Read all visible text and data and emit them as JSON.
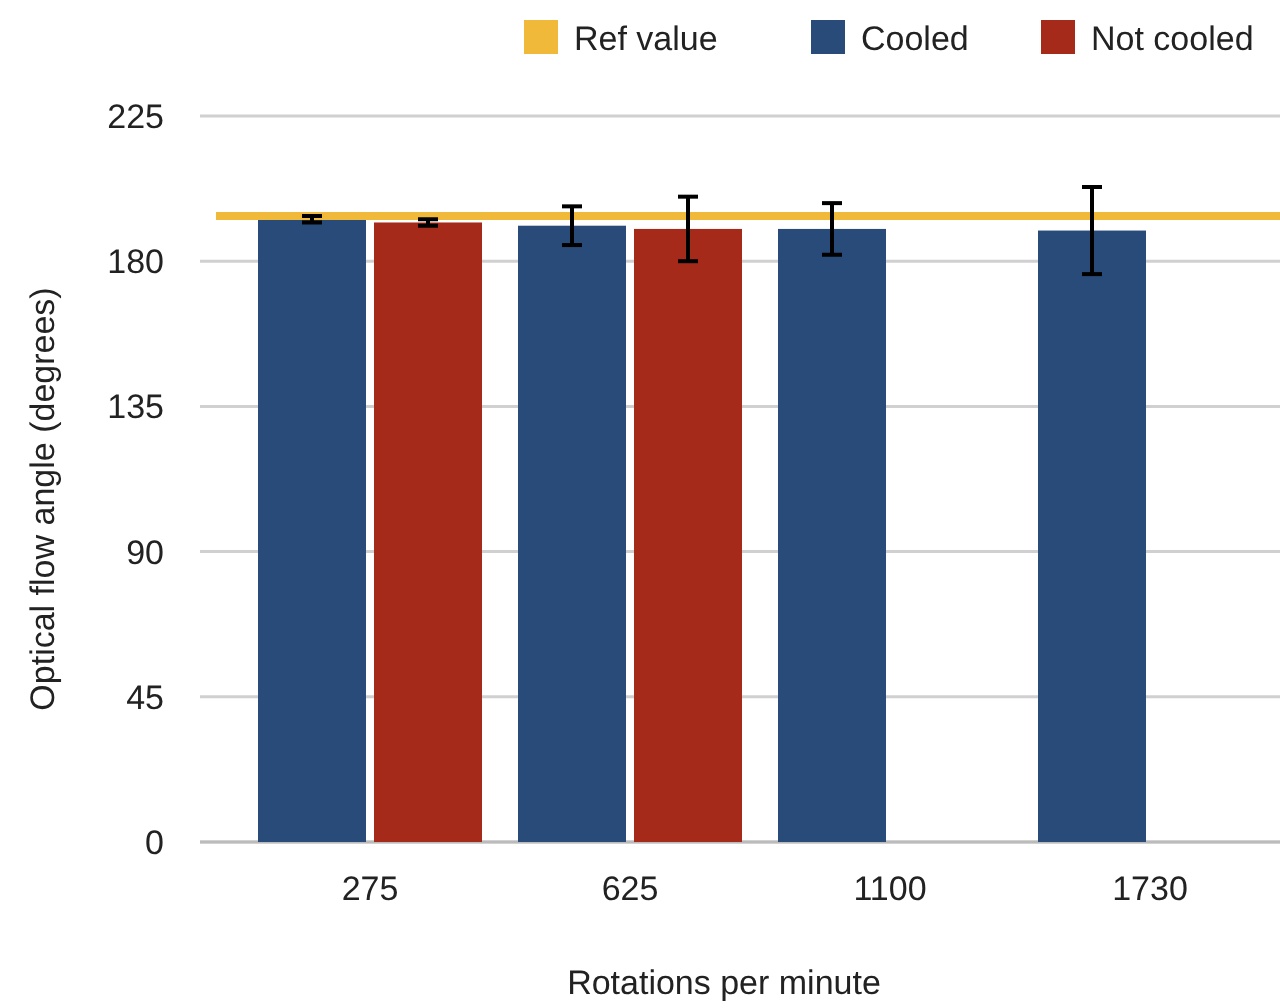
{
  "chart_data": {
    "type": "bar",
    "xlabel": "Rotations per minute",
    "ylabel": "Optical flow angle (degrees)",
    "categories": [
      "275",
      "625",
      "1100",
      "1730"
    ],
    "series": [
      {
        "name": "Cooled",
        "color": "#284b7a",
        "values": [
          193,
          191,
          190,
          189.5
        ],
        "errors": [
          1,
          6,
          8,
          13.5
        ]
      },
      {
        "name": "Not cooled",
        "color": "#a52a19",
        "values": [
          192,
          190,
          null,
          null
        ],
        "errors": [
          1,
          10,
          null,
          null
        ]
      }
    ],
    "ref_lines": [
      {
        "axis": "y",
        "value": 194,
        "label": "Ref value",
        "color": "#f0b93a"
      }
    ],
    "ylim": [
      0,
      225
    ],
    "yticks": [
      0,
      45,
      90,
      135,
      180,
      225
    ],
    "grid": "y",
    "legend": "top"
  }
}
